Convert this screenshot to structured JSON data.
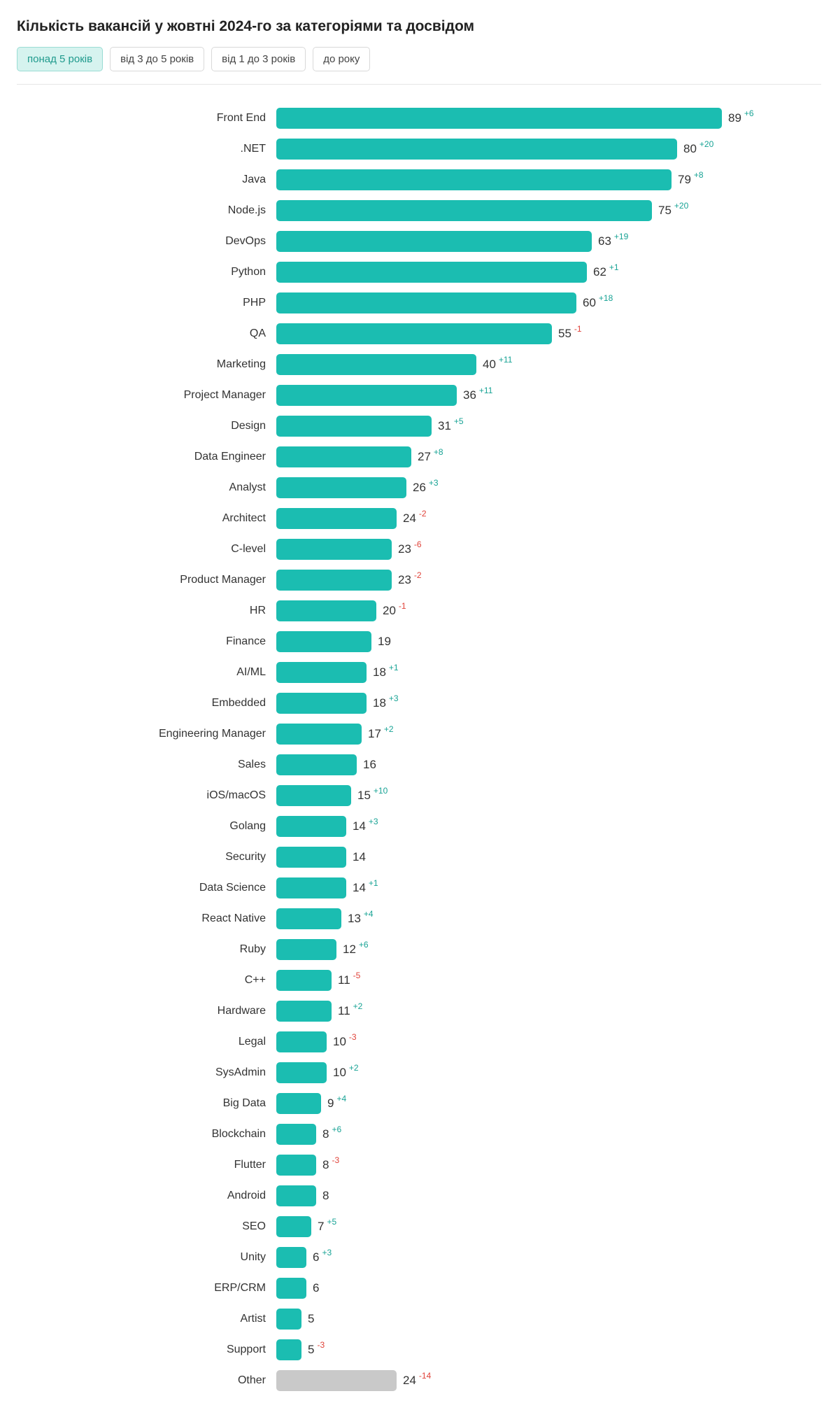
{
  "header": {
    "title": "Кількість вакансій у жовтні 2024-го за категоріями та досвідом"
  },
  "tabs": [
    {
      "label": "понад 5 років",
      "active": true
    },
    {
      "label": "від 3 до 5 років",
      "active": false
    },
    {
      "label": "від 1 до 3 років",
      "active": false
    },
    {
      "label": "до року",
      "active": false
    }
  ],
  "colors": {
    "bar": "#1bbdb1",
    "bar_muted": "#c9c9c9",
    "delta_positive": "#18a395",
    "delta_negative": "#e0433a"
  },
  "chart_data": {
    "type": "bar",
    "orientation": "horizontal",
    "title": "Кількість вакансій у жовтні 2024-го за категоріями та досвідом",
    "xlabel": "",
    "ylabel": "",
    "xlim": [
      0,
      89
    ],
    "legend": false,
    "grid": false,
    "categories": [
      "Front End",
      ".NET",
      "Java",
      "Node.js",
      "DevOps",
      "Python",
      "PHP",
      "QA",
      "Marketing",
      "Project Manager",
      "Design",
      "Data Engineer",
      "Analyst",
      "Architect",
      "C-level",
      "Product Manager",
      "HR",
      "Finance",
      "AI/ML",
      "Embedded",
      "Engineering Manager",
      "Sales",
      "iOS/macOS",
      "Golang",
      "Security",
      "Data Science",
      "React Native",
      "Ruby",
      "C++",
      "Hardware",
      "Legal",
      "SysAdmin",
      "Big Data",
      "Blockchain",
      "Flutter",
      "Android",
      "SEO",
      "Unity",
      "ERP/CRM",
      "Artist",
      "Support",
      "Other"
    ],
    "values": [
      89,
      80,
      79,
      75,
      63,
      62,
      60,
      55,
      40,
      36,
      31,
      27,
      26,
      24,
      23,
      23,
      20,
      19,
      18,
      18,
      17,
      16,
      15,
      14,
      14,
      14,
      13,
      12,
      11,
      11,
      10,
      10,
      9,
      8,
      8,
      8,
      7,
      6,
      6,
      5,
      5,
      24
    ],
    "deltas": [
      "+6",
      "+20",
      "+8",
      "+20",
      "+19",
      "+1",
      "+18",
      "-1",
      "+11",
      "+11",
      "+5",
      "+8",
      "+3",
      "-2",
      "-6",
      "-2",
      "-1",
      null,
      "+1",
      "+3",
      "+2",
      null,
      "+10",
      "+3",
      null,
      "+1",
      "+4",
      "+6",
      "-5",
      "+2",
      "-3",
      "+2",
      "+4",
      "+6",
      "-3",
      null,
      "+5",
      "+3",
      null,
      null,
      "-3",
      "-14"
    ],
    "muted_categories": [
      "Other"
    ]
  }
}
